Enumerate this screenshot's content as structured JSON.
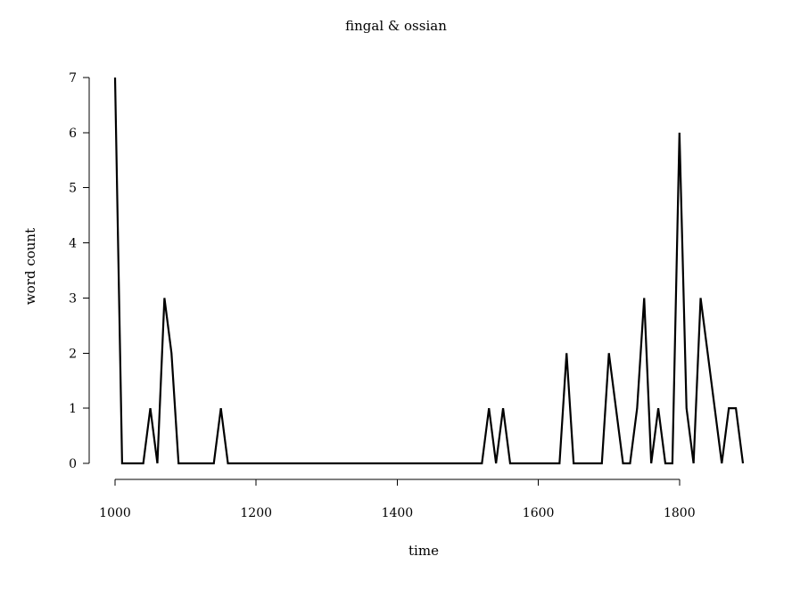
{
  "chart_data": {
    "type": "line",
    "title": "fingal & ossian",
    "xlabel": "time",
    "ylabel": "word count",
    "xlim": [
      1000,
      1890
    ],
    "ylim": [
      0,
      7
    ],
    "xticks": [
      1000,
      1200,
      1400,
      1600,
      1800
    ],
    "yticks": [
      0,
      1,
      2,
      3,
      4,
      5,
      6,
      7
    ],
    "grid": false,
    "legend": "none",
    "colors": {
      "line": "#000000",
      "axis": "#000000",
      "background": "#ffffff"
    },
    "series": [
      {
        "x": [
          1000,
          1010,
          1020,
          1030,
          1040,
          1050,
          1060,
          1070,
          1080,
          1090,
          1100,
          1110,
          1120,
          1130,
          1140,
          1150,
          1160,
          1170,
          1180,
          1190,
          1200,
          1210,
          1220,
          1230,
          1240,
          1250,
          1260,
          1270,
          1280,
          1290,
          1300,
          1310,
          1320,
          1330,
          1340,
          1350,
          1360,
          1370,
          1380,
          1390,
          1400,
          1410,
          1420,
          1430,
          1440,
          1450,
          1460,
          1470,
          1480,
          1490,
          1500,
          1510,
          1520,
          1530,
          1540,
          1550,
          1560,
          1570,
          1580,
          1590,
          1600,
          1610,
          1620,
          1630,
          1640,
          1650,
          1660,
          1670,
          1680,
          1690,
          1700,
          1710,
          1720,
          1730,
          1740,
          1750,
          1760,
          1770,
          1780,
          1790,
          1800,
          1810,
          1820,
          1830,
          1840,
          1850,
          1860,
          1870,
          1880,
          1890
        ],
        "values": [
          7,
          0,
          0,
          0,
          0,
          1,
          0,
          3,
          2,
          0,
          0,
          0,
          0,
          0,
          0,
          1,
          0,
          0,
          0,
          0,
          0,
          0,
          0,
          0,
          0,
          0,
          0,
          0,
          0,
          0,
          0,
          0,
          0,
          0,
          0,
          0,
          0,
          0,
          0,
          0,
          0,
          0,
          0,
          0,
          0,
          0,
          0,
          0,
          0,
          0,
          0,
          0,
          0,
          1,
          0,
          1,
          0,
          0,
          0,
          0,
          0,
          0,
          0,
          0,
          2,
          0,
          0,
          0,
          0,
          0,
          2,
          1,
          0,
          0,
          1,
          3,
          0,
          1,
          0,
          0,
          6,
          1,
          0,
          3,
          2,
          1,
          0,
          1,
          1,
          0
        ]
      }
    ]
  }
}
